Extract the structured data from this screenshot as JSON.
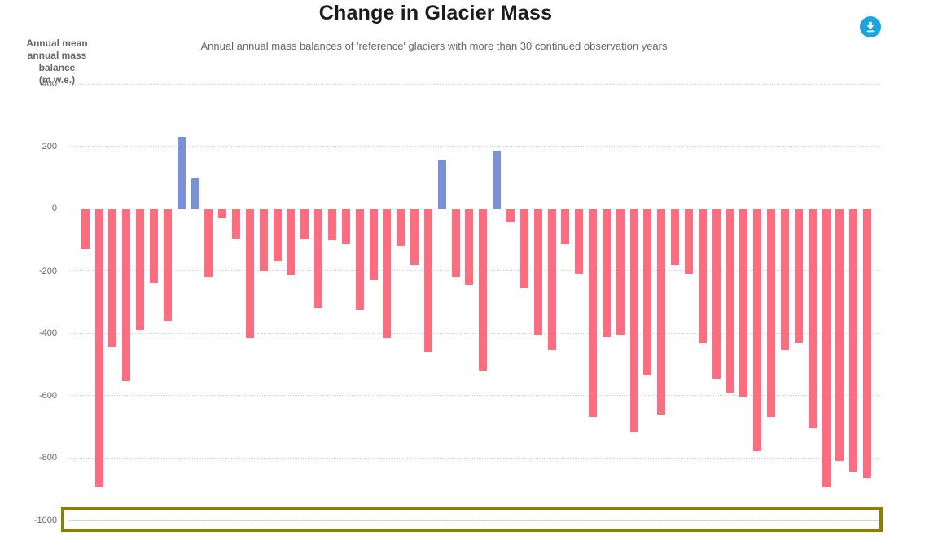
{
  "header": {
    "title": "Change in Glacier Mass",
    "subtitle": "Annual annual mass balances of 'reference' glaciers with more than 30 continued observation years"
  },
  "toolbar": {
    "download_icon": "download-arrow-circle",
    "download_color": "#1fa3dc"
  },
  "chart_data": {
    "type": "bar",
    "title": "Change in Glacier Mass",
    "subtitle": "Annual annual mass balances of 'reference' glaciers with more than 30 continued observation years",
    "ylabel_lines": [
      "Annual mean",
      "annual mass balance",
      "(m w.e.)"
    ],
    "ytick_labels": [
      "400",
      "200",
      "0",
      "-200",
      "-400",
      "-600",
      "-800",
      "-1000"
    ],
    "yticks": [
      400,
      200,
      0,
      -200,
      -400,
      -600,
      -800,
      -1000
    ],
    "ylim": [
      -1000,
      400
    ],
    "grid": "horizontal-dotted",
    "legend": "none",
    "x_tick_labels": "none visible",
    "values": [
      -130,
      -895,
      -445,
      -555,
      -390,
      -240,
      -360,
      230,
      98,
      -220,
      -30,
      -97,
      -415,
      -200,
      -170,
      -215,
      -100,
      -320,
      -102,
      -113,
      -325,
      -230,
      -415,
      -120,
      -180,
      -460,
      155,
      -220,
      -245,
      -520,
      185,
      -45,
      -255,
      -405,
      -455,
      -115,
      -210,
      -670,
      -413,
      -405,
      -720,
      -535,
      -660,
      -180,
      -210,
      -430,
      -545,
      -590,
      -605,
      -780,
      -670,
      -455,
      -430,
      -705,
      -895,
      -810,
      -845,
      -865
    ],
    "colors": {
      "negative_bar": "#fb6d7f",
      "positive_bar": "#7c90d5",
      "gridline": "#d8d8d8",
      "axis_line": "#ccd6eb"
    },
    "annotation": {
      "highlight_box_color": "#8d7f00",
      "highlight_region": "x-axis strip at bottom of plot"
    }
  }
}
